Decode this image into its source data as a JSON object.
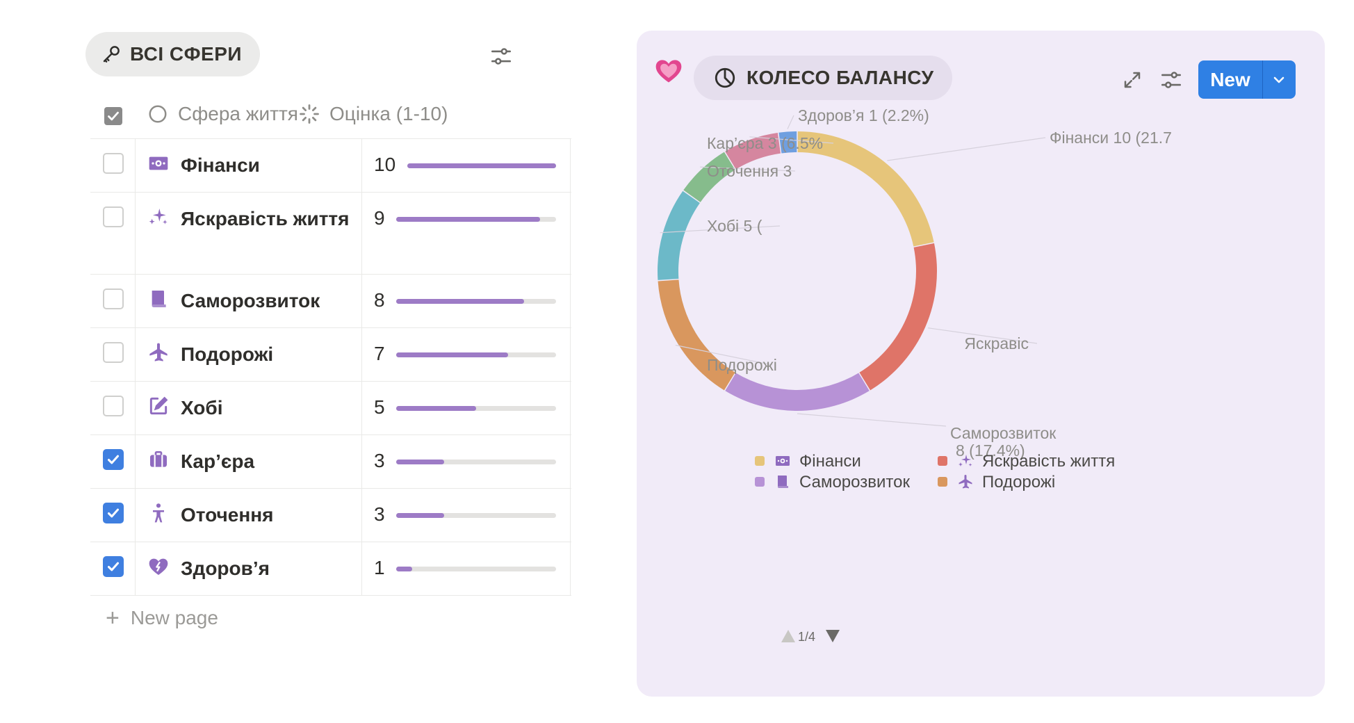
{
  "left_view": {
    "tab_title": "ВСІ СФЕРИ",
    "columns": {
      "name": "Сфера життя",
      "score": "Оцінка (1-10)"
    },
    "rows": [
      {
        "name": "Фінанси",
        "score": "10",
        "value": 10,
        "checked": false,
        "icon": "money-icon"
      },
      {
        "name": "Яскравість життя",
        "score": "9",
        "value": 9,
        "checked": false,
        "icon": "sparkles-icon"
      },
      {
        "name": "Саморозвиток",
        "score": "8",
        "value": 8,
        "checked": false,
        "icon": "book-icon"
      },
      {
        "name": "Подорожі",
        "score": "7",
        "value": 7,
        "checked": false,
        "icon": "airplane-icon"
      },
      {
        "name": "Хобі",
        "score": "5",
        "value": 5,
        "checked": false,
        "icon": "edit-square-icon"
      },
      {
        "name": "Кар’єра",
        "score": "3",
        "value": 3,
        "checked": true,
        "icon": "briefcase-icon"
      },
      {
        "name": "Оточення",
        "score": "3",
        "value": 3,
        "checked": true,
        "icon": "person-icon"
      },
      {
        "name": "Здоров’я",
        "score": "1",
        "value": 1,
        "checked": true,
        "icon": "heart-pulse-icon"
      }
    ],
    "new_page": "New page"
  },
  "chart_panel": {
    "tab_title": "КОЛЕСО БАЛАНСУ",
    "new_button": "New",
    "pager": "1/4"
  },
  "chart_data": {
    "type": "pie",
    "donut": true,
    "slices": [
      {
        "label": "Фінанси",
        "value": 10,
        "color": "#e6c57a",
        "chart_label": "Фінанси  10 (21.7"
      },
      {
        "label": "Яскравість життя",
        "value": 9,
        "color": "#df7468",
        "chart_label": "Яскравіс"
      },
      {
        "label": "Саморозвиток",
        "value": 8,
        "color": "#b792d6",
        "chart_label": "Саморозвиток",
        "chart_label_2": "8 (17.4%)"
      },
      {
        "label": "Подорожі",
        "value": 7,
        "color": "#d9975e",
        "chart_label": "Подорожі"
      },
      {
        "label": "Хобі",
        "value": 5,
        "color": "#6cb9c8",
        "chart_label": "Хобі  5 ("
      },
      {
        "label": "Оточення",
        "value": 3,
        "color": "#86bc8c",
        "chart_label": "Оточення  3"
      },
      {
        "label": "Кар’єра",
        "value": 3,
        "color": "#d5869f",
        "chart_label": "Кар’єра  3 (6.5%"
      },
      {
        "label": "Здоров’я",
        "value": 1,
        "color": "#6f9fe0",
        "chart_label": "Здоров’я  1 (2.2%)"
      }
    ],
    "legend": [
      {
        "label": "Фінанси",
        "color": "#e6c57a",
        "icon": "money-icon"
      },
      {
        "label": "Яскравість життя",
        "color": "#df7468",
        "icon": "sparkles-icon"
      },
      {
        "label": "Саморозвиток",
        "color": "#b792d6",
        "icon": "book-icon"
      },
      {
        "label": "Подорожі",
        "color": "#d9975e",
        "icon": "airplane-icon"
      }
    ],
    "legend_placement": "bottom"
  }
}
